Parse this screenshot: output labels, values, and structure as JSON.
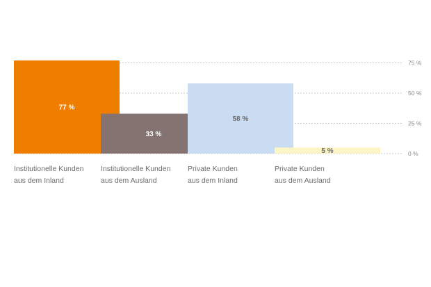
{
  "chart_data": {
    "type": "bar",
    "title": "",
    "xlabel": "",
    "ylabel": "",
    "ylim": [
      0,
      80
    ],
    "grid": true,
    "ticks": [
      {
        "value": 75,
        "label": "75 %"
      },
      {
        "value": 50,
        "label": "50 %"
      },
      {
        "value": 25,
        "label": "25 %"
      },
      {
        "value": 0,
        "label": "0 %"
      }
    ],
    "categories": [
      [
        "Institutionelle Kunden",
        "aus dem Inland"
      ],
      [
        "Institutionelle Kunden",
        "aus dem Ausland"
      ],
      [
        "Private Kunden",
        "aus dem Inland"
      ],
      [
        "Private Kunden",
        "aus dem Ausland"
      ]
    ],
    "values": [
      77,
      33,
      58,
      5
    ],
    "value_labels": [
      "77 %",
      "33 %",
      "58 %",
      "5 %"
    ],
    "colors": [
      "#ef7d00",
      "#857372",
      "#c9dcf2",
      "#fdf4c6"
    ],
    "label_colors": [
      "#ffffff",
      "#ffffff",
      "#6b6b6b",
      "#6b6b6b"
    ],
    "grid_color": "#b5b5b5"
  }
}
